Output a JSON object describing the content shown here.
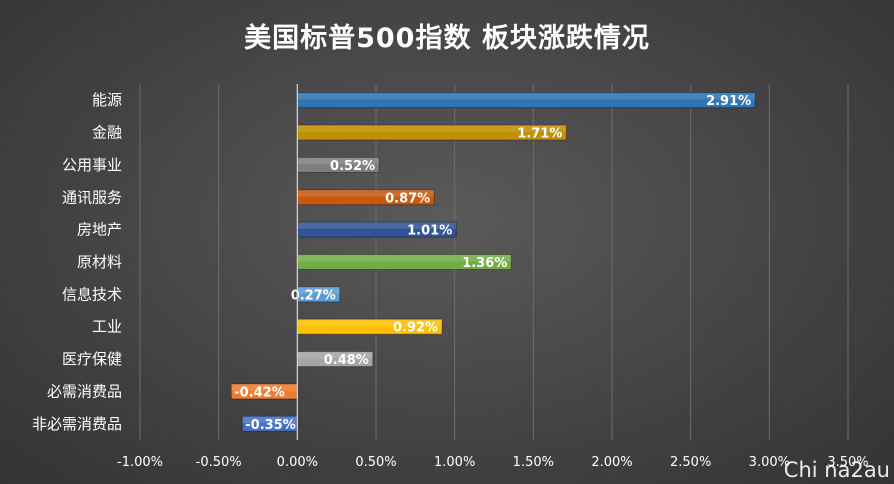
{
  "chart_data": {
    "type": "bar",
    "orientation": "horizontal",
    "title": "美国标普500指数 板块涨跌情况",
    "categories": [
      "能源",
      "金融",
      "公用事业",
      "通讯服务",
      "房地产",
      "原材料",
      "信息技术",
      "工业",
      "医疗保健",
      "必需消费品",
      "非必需消费品"
    ],
    "values": [
      2.91,
      1.71,
      0.52,
      0.87,
      1.01,
      1.36,
      0.27,
      0.92,
      0.48,
      -0.42,
      -0.35
    ],
    "value_labels": [
      "2.91%",
      "1.71%",
      "0.52%",
      "0.87%",
      "1.01%",
      "1.36%",
      "0.27%",
      "0.92%",
      "0.48%",
      "-0.42%",
      "-0.35%"
    ],
    "colors": [
      "#2e75b6",
      "#bf9000",
      "#7f7f7f",
      "#c55a11",
      "#2f5597",
      "#70ad47",
      "#5b9bd5",
      "#ffc000",
      "#a5a5a5",
      "#ed7d31",
      "#4472c4"
    ],
    "xlim": [
      -1.0,
      3.5
    ],
    "x_ticks": [
      -1.0,
      -0.5,
      0.0,
      0.5,
      1.0,
      1.5,
      2.0,
      2.5,
      3.0,
      3.5
    ],
    "x_tick_labels": [
      "-1.00%",
      "-0.50%",
      "0.00%",
      "0.50%",
      "1.00%",
      "1.50%",
      "2.00%",
      "2.50%",
      "3.00%",
      "3.50%"
    ],
    "grid": true,
    "background": "#444444"
  },
  "watermark": "Chi na2au"
}
